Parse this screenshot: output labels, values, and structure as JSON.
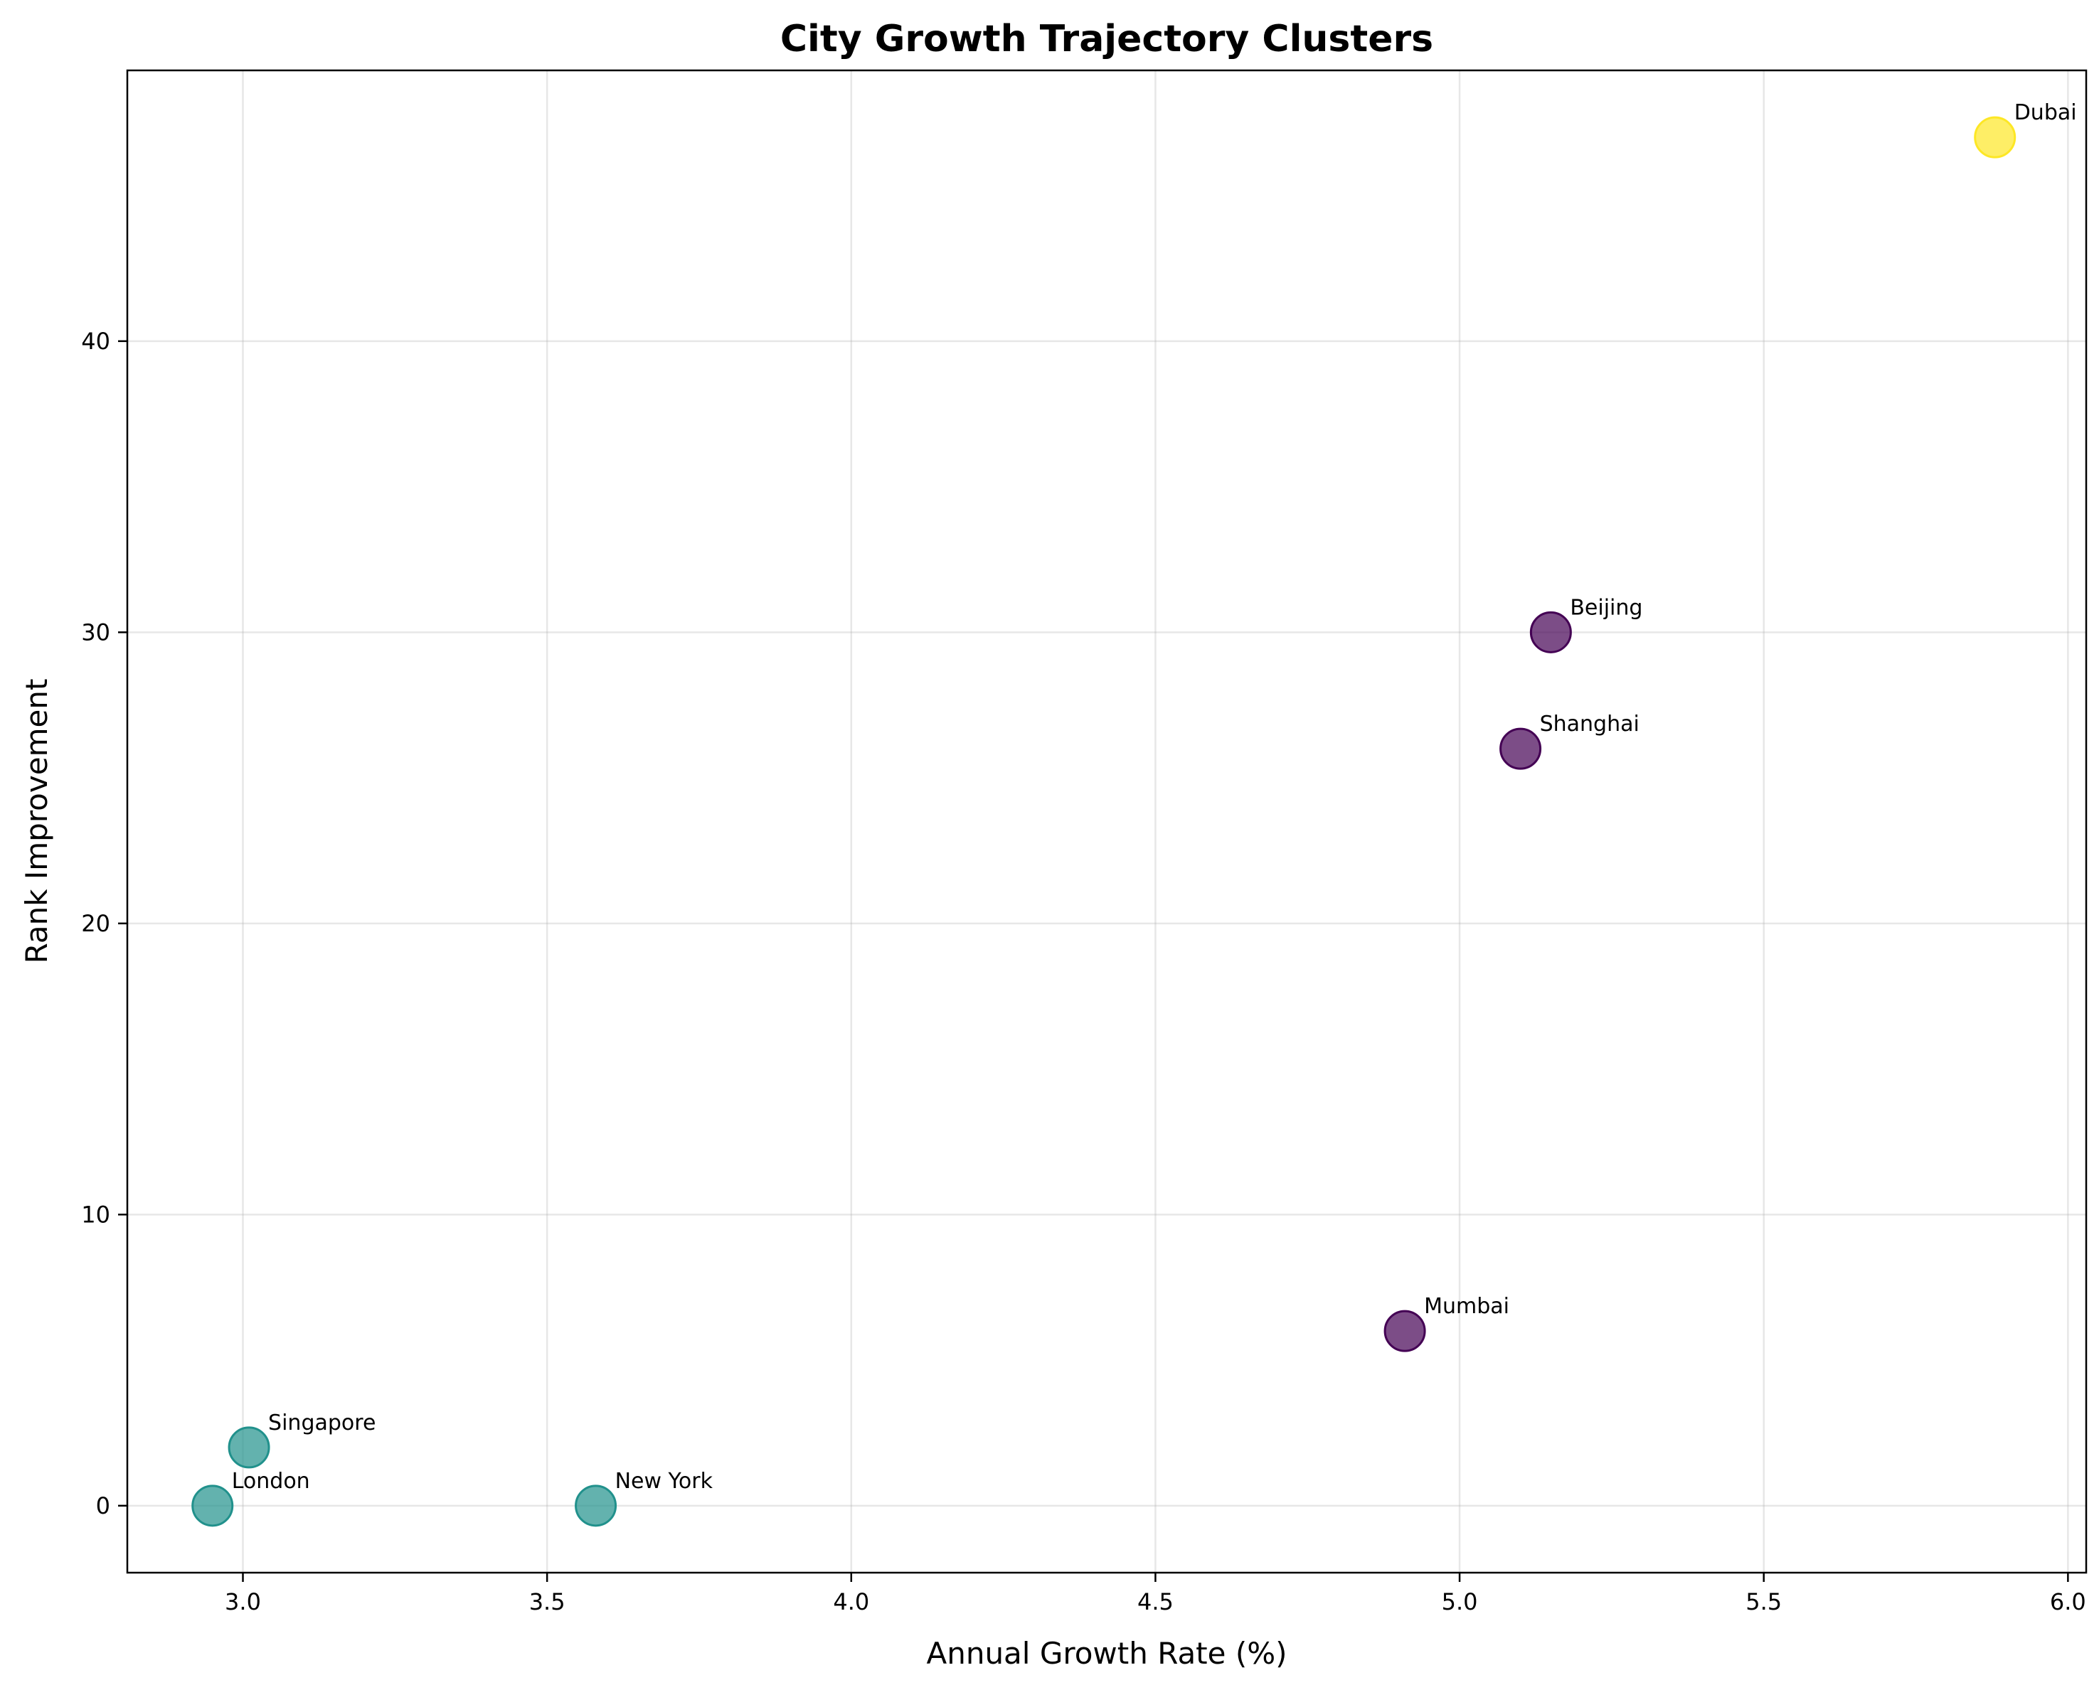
{
  "chart_data": {
    "type": "scatter",
    "title": "City Growth Trajectory Clusters",
    "xlabel": "Annual Growth Rate (%)",
    "ylabel": "Rank Improvement",
    "xlim": [
      2.81,
      6.03
    ],
    "ylim": [
      -2.3,
      49.3
    ],
    "xticks": [
      3.0,
      3.5,
      4.0,
      4.5,
      5.0,
      5.5,
      6.0
    ],
    "xtick_labels": [
      "3.0",
      "3.5",
      "4.0",
      "4.5",
      "5.0",
      "5.5",
      "6.0"
    ],
    "yticks": [
      0,
      10,
      20,
      30,
      40
    ],
    "ytick_labels": [
      "0",
      "10",
      "20",
      "30",
      "40"
    ],
    "grid": true,
    "points": [
      {
        "label": "Dubai",
        "x": 5.88,
        "y": 47,
        "color": "#fde725"
      },
      {
        "label": "Beijing",
        "x": 5.15,
        "y": 30,
        "color": "#440154"
      },
      {
        "label": "Shanghai",
        "x": 5.1,
        "y": 26,
        "color": "#440154"
      },
      {
        "label": "Mumbai",
        "x": 4.91,
        "y": 6,
        "color": "#440154"
      },
      {
        "label": "Singapore",
        "x": 3.01,
        "y": 2,
        "color": "#21918c"
      },
      {
        "label": "London",
        "x": 2.95,
        "y": 0,
        "color": "#21918c"
      },
      {
        "label": "New York",
        "x": 3.58,
        "y": 0,
        "color": "#21918c"
      }
    ]
  }
}
